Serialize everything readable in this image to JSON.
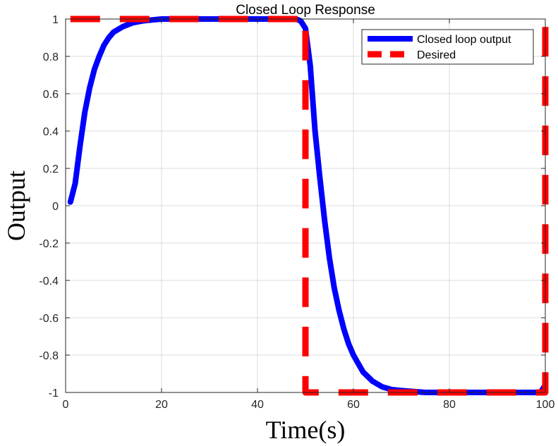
{
  "chart_data": {
    "type": "line",
    "title": "Closed Loop Response",
    "xlabel": "Time(s)",
    "ylabel": "Output",
    "xlim": [
      0,
      100
    ],
    "ylim": [
      -1,
      1
    ],
    "xticks": [
      0,
      20,
      40,
      60,
      80,
      100
    ],
    "yticks": [
      -1,
      -0.8,
      -0.6,
      -0.4,
      -0.2,
      0,
      0.2,
      0.4,
      0.6,
      0.8,
      1
    ],
    "xtick_labels": [
      "0",
      "20",
      "40",
      "60",
      "80",
      "100"
    ],
    "ytick_labels": [
      "-1",
      "-0.8",
      "-0.6",
      "-0.4",
      "-0.2",
      "0",
      "0.2",
      "0.4",
      "0.6",
      "0.8",
      "1"
    ],
    "grid": true,
    "legend_position": "top-right",
    "series": [
      {
        "name": "Closed loop output",
        "color": "#0000ff",
        "style": "solid",
        "x": [
          1,
          2,
          3,
          4,
          5,
          6,
          7,
          8,
          9,
          10,
          12,
          14,
          16,
          18,
          20,
          25,
          30,
          35,
          40,
          45,
          48,
          49,
          50,
          51,
          52,
          53,
          54,
          55,
          56,
          57,
          58,
          59,
          60,
          62,
          64,
          66,
          68,
          70,
          75,
          80,
          85,
          90,
          95,
          99,
          100
        ],
        "y": [
          0.02,
          0.12,
          0.32,
          0.5,
          0.63,
          0.73,
          0.8,
          0.86,
          0.9,
          0.93,
          0.96,
          0.98,
          0.99,
          0.995,
          1.0,
          1.0,
          1.0,
          1.0,
          1.0,
          1.0,
          1.0,
          0.99,
          0.95,
          0.75,
          0.4,
          0.15,
          -0.08,
          -0.28,
          -0.44,
          -0.56,
          -0.66,
          -0.74,
          -0.8,
          -0.89,
          -0.94,
          -0.97,
          -0.985,
          -0.99,
          -1.0,
          -1.0,
          -1.0,
          -1.0,
          -1.0,
          -1.0,
          -0.96
        ]
      },
      {
        "name": "Desired",
        "color": "#ff0000",
        "style": "dashed",
        "x": [
          1,
          50,
          50,
          100,
          100
        ],
        "y": [
          1,
          1,
          -1,
          -1,
          1
        ]
      }
    ]
  }
}
